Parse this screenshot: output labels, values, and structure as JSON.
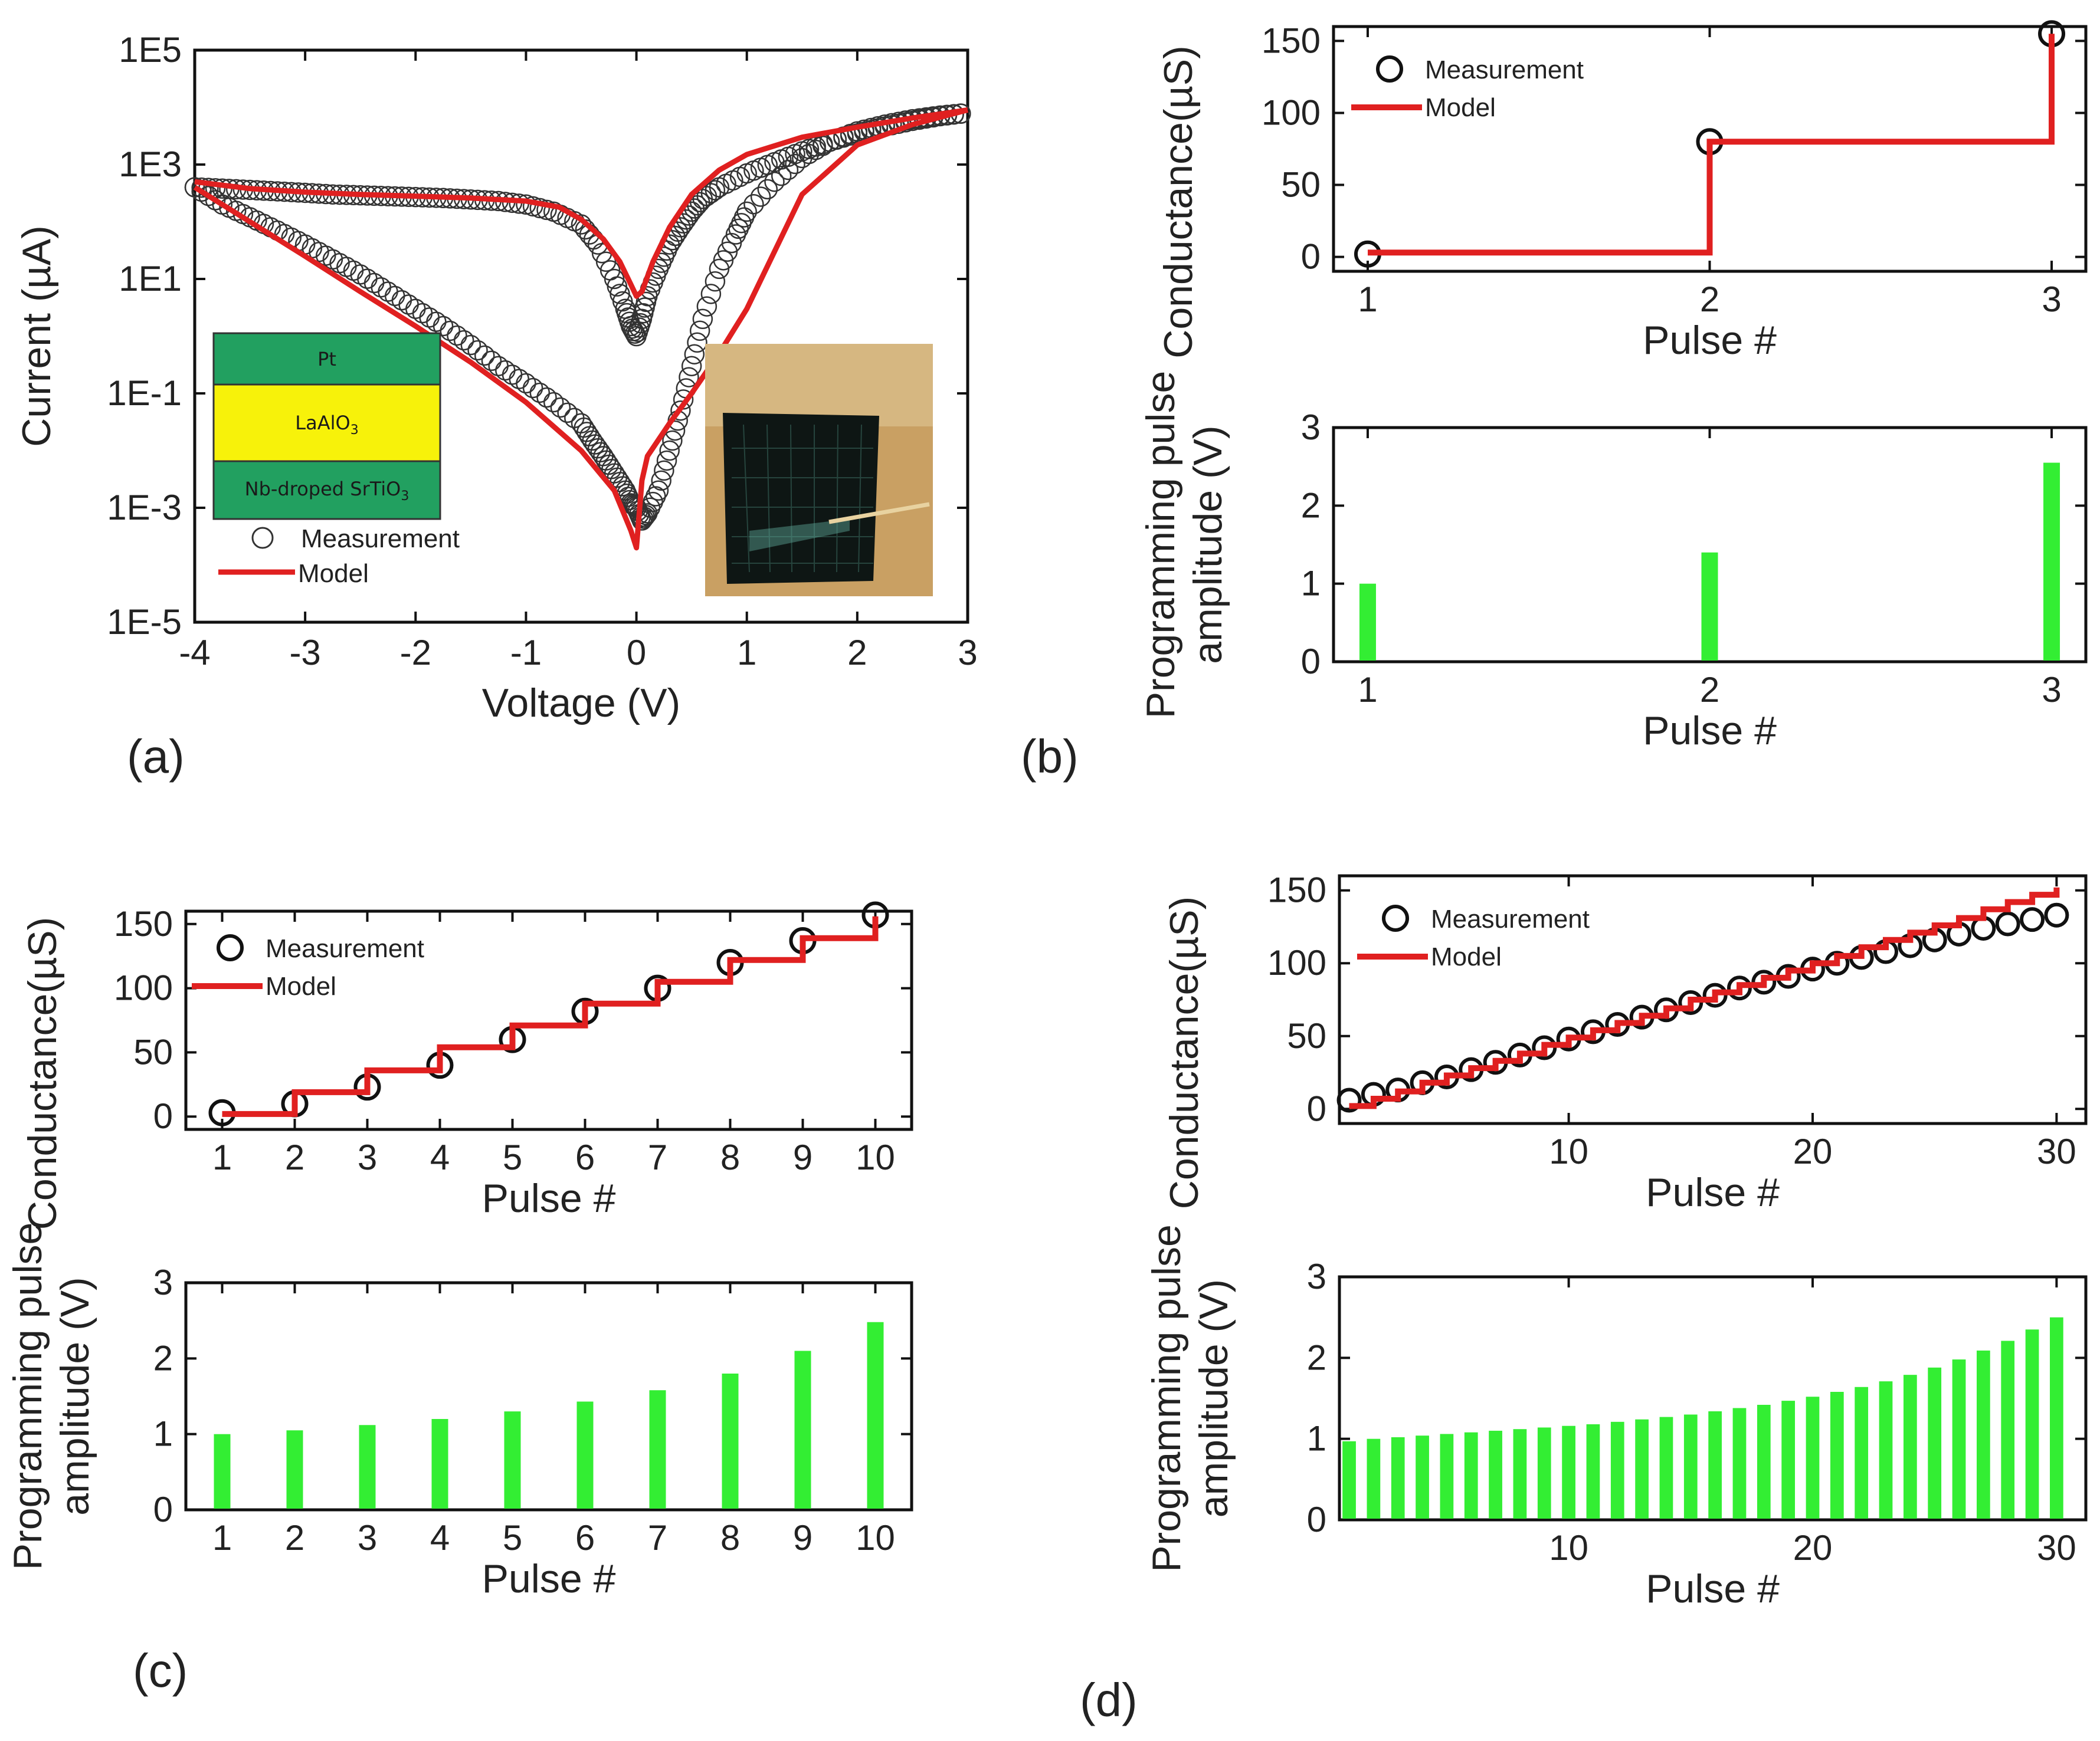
{
  "panels": {
    "a_label": "(a)",
    "b_label": "(b)",
    "c_label": "(c)",
    "d_label": "(d)"
  },
  "inset_a": {
    "layers": [
      "Pt",
      "LaAlO3",
      "Nb-droped SrTiO3"
    ],
    "colors": {
      "pt": "#22a060",
      "laalo3": "#f7f20a",
      "sto": "#22a060"
    }
  },
  "legend": {
    "measurement": "Measurement",
    "model": "Model"
  },
  "colors": {
    "model": "#e02020",
    "bar": "#33ee33",
    "marker": "#111111"
  },
  "chart_data": [
    {
      "id": "a",
      "type": "line",
      "xlabel": "Voltage (V)",
      "ylabel": "Current (µA)",
      "yscale": "log",
      "xlim": [
        -4,
        3
      ],
      "ylim": [
        1e-05,
        100000.0
      ],
      "xticks": [
        -4,
        -3,
        -2,
        -1,
        0,
        1,
        2,
        3
      ],
      "yticks": [
        {
          "v": 100000.0,
          "t": "1E5"
        },
        {
          "v": 1000.0,
          "t": "1E3"
        },
        {
          "v": 10.0,
          "t": "1E1"
        },
        {
          "v": 0.1,
          "t": "1E-1"
        },
        {
          "v": 0.001,
          "t": "1E-3"
        },
        {
          "v": 1e-05,
          "t": "1E-5"
        }
      ],
      "series": [
        {
          "name": "Measurement",
          "style": "markers",
          "x": [
            -4,
            -3.75,
            -3.5,
            -3.25,
            -3,
            -2.75,
            -2.5,
            -2.25,
            -2,
            -1.75,
            -1.5,
            -1.25,
            -1,
            -0.75,
            -0.5,
            -0.35,
            -0.2,
            -0.1,
            -0.05,
            0,
            0.05,
            0.1,
            0.2,
            0.3,
            0.4,
            0.5,
            0.6,
            0.75,
            1,
            1.25,
            1.5,
            1.75,
            2,
            2.25,
            2.5,
            2.75,
            3
          ],
          "y": [
            400,
            380,
            360,
            340,
            320,
            300,
            290,
            280,
            270,
            260,
            245,
            230,
            200,
            150,
            90,
            40,
            10,
            3,
            1.5,
            1,
            2,
            5,
            15,
            40,
            80,
            150,
            250,
            400,
            700,
            1100,
            1700,
            2500,
            3500,
            4600,
            5800,
            7000,
            8000
          ]
        },
        {
          "name": "Measurement",
          "style": "markers",
          "x": [
            -4,
            -3.75,
            -3.5,
            -3.25,
            -3,
            -2.75,
            -2.5,
            -2.25,
            -2,
            -1.75,
            -1.5,
            -1.25,
            -1,
            -0.75,
            -0.5,
            -0.4,
            -0.3,
            -0.2,
            -0.1,
            -0.05,
            0,
            0.05,
            0.1,
            0.2,
            0.3,
            0.4,
            0.5,
            0.6,
            0.75,
            0.9,
            1,
            1.25,
            1.5,
            1.75,
            2,
            2.25,
            2.5,
            2.75,
            3
          ],
          "y": [
            400,
            200,
            120,
            70,
            40,
            22,
            12,
            6,
            3,
            1.5,
            0.7,
            0.3,
            0.15,
            0.07,
            0.03,
            0.015,
            0.008,
            0.004,
            0.002,
            0.0012,
            0.001,
            0.0006,
            0.0008,
            0.002,
            0.01,
            0.05,
            0.3,
            2,
            15,
            60,
            150,
            500,
            1300,
            2500,
            3800,
            5000,
            6200,
            7200,
            8000
          ]
        },
        {
          "name": "Model",
          "style": "line",
          "x": [
            -4,
            -3.5,
            -3,
            -2.5,
            -2,
            -1.5,
            -1,
            -0.7,
            -0.5,
            -0.3,
            -0.15,
            -0.05,
            0,
            0.05,
            0.15,
            0.3,
            0.5,
            0.75,
            1,
            1.5,
            2,
            2.5,
            3
          ],
          "y": [
            500,
            380,
            330,
            300,
            280,
            260,
            230,
            180,
            110,
            50,
            20,
            8,
            5,
            6,
            20,
            80,
            300,
            800,
            1500,
            3000,
            4500,
            6500,
            9000
          ]
        },
        {
          "name": "Model",
          "style": "line",
          "x": [
            -4,
            -3.5,
            -3,
            -2.5,
            -2,
            -1.5,
            -1,
            -0.5,
            -0.2,
            -0.05,
            0,
            0.05,
            0.1,
            0.3,
            0.5,
            0.75,
            1,
            1.25,
            1.5,
            2,
            2.5,
            3
          ],
          "y": [
            400,
            100,
            25,
            6,
            1.5,
            0.35,
            0.07,
            0.01,
            0.002,
            0.0004,
            0.0002,
            0.003,
            0.008,
            0.03,
            0.1,
            0.5,
            3,
            30,
            300,
            2200,
            5000,
            9000
          ]
        }
      ]
    },
    {
      "id": "b_top",
      "type": "line",
      "xlabel": "Pulse #",
      "ylabel": "Conductance(µS)",
      "xlim": [
        0.9,
        3.1
      ],
      "ylim": [
        -10,
        160
      ],
      "xticks": [
        1,
        2,
        3
      ],
      "yticks": [
        0,
        50,
        100,
        150
      ],
      "measurement": {
        "x": [
          1,
          2,
          3
        ],
        "y": [
          2,
          80,
          155
        ]
      },
      "model_steps": {
        "x": [
          1,
          2,
          3
        ],
        "y": [
          3,
          80,
          155
        ]
      }
    },
    {
      "id": "b_bottom",
      "type": "bar",
      "xlabel": "Pulse #",
      "ylabel": "Programming pulse amplitude (V)",
      "xlim": [
        0.9,
        3.1
      ],
      "ylim": [
        0,
        3
      ],
      "xticks": [
        1,
        2,
        3
      ],
      "yticks": [
        0,
        1,
        2,
        3
      ],
      "categories": [
        1,
        2,
        3
      ],
      "values": [
        1,
        1.4,
        2.55
      ]
    },
    {
      "id": "c_top",
      "type": "line",
      "xlabel": "Pulse #",
      "ylabel": "Conductance(µS)",
      "xlim": [
        0.5,
        10.5
      ],
      "ylim": [
        -10,
        160
      ],
      "xticks": [
        1,
        2,
        3,
        4,
        5,
        6,
        7,
        8,
        9,
        10
      ],
      "yticks": [
        0,
        50,
        100,
        150
      ],
      "measurement": {
        "x": [
          1,
          2,
          3,
          4,
          5,
          6,
          7,
          8,
          9,
          10
        ],
        "y": [
          3,
          10,
          23,
          40,
          60,
          82,
          100,
          120,
          137,
          157
        ]
      },
      "model_steps": {
        "x": [
          1,
          2,
          3,
          4,
          5,
          6,
          7,
          8,
          9,
          10
        ],
        "y": [
          2,
          19,
          36,
          54,
          71,
          88,
          105,
          122,
          139,
          156
        ]
      }
    },
    {
      "id": "c_bottom",
      "type": "bar",
      "xlabel": "Pulse #",
      "ylabel": "Programming pulse amplitude (V)",
      "xlim": [
        0.5,
        10.5
      ],
      "ylim": [
        0,
        3
      ],
      "xticks": [
        1,
        2,
        3,
        4,
        5,
        6,
        7,
        8,
        9,
        10
      ],
      "yticks": [
        0,
        1,
        2,
        3
      ],
      "categories": [
        1,
        2,
        3,
        4,
        5,
        6,
        7,
        8,
        9,
        10
      ],
      "values": [
        1,
        1.05,
        1.12,
        1.2,
        1.3,
        1.43,
        1.58,
        1.8,
        2.1,
        2.48
      ]
    },
    {
      "id": "d_top",
      "type": "line",
      "xlabel": "Pulse #",
      "ylabel": "Conductance(µS)",
      "xlim": [
        0.6,
        31.2
      ],
      "ylim": [
        -10,
        160
      ],
      "xticks": [
        10,
        20,
        30
      ],
      "yticks": [
        0,
        50,
        100,
        150
      ],
      "measurement": {
        "x": [
          1,
          2,
          3,
          4,
          5,
          6,
          7,
          8,
          9,
          10,
          11,
          12,
          13,
          14,
          15,
          16,
          17,
          18,
          19,
          20,
          21,
          22,
          23,
          24,
          25,
          26,
          27,
          28,
          29,
          30
        ],
        "y": [
          6,
          10,
          13,
          18,
          22,
          27,
          32,
          37,
          42,
          48,
          53,
          58,
          63,
          68,
          73,
          78,
          83,
          87,
          91,
          96,
          100,
          104,
          108,
          112,
          116,
          120,
          124,
          127,
          130,
          133
        ]
      },
      "model_steps": {
        "x": [
          1,
          2,
          3,
          4,
          5,
          6,
          7,
          8,
          9,
          10,
          11,
          12,
          13,
          14,
          15,
          16,
          17,
          18,
          19,
          20,
          21,
          22,
          23,
          24,
          25,
          26,
          27,
          28,
          29,
          30
        ],
        "y": [
          2,
          7,
          12,
          18,
          23,
          28,
          33,
          38,
          44,
          49,
          54,
          59,
          64,
          69,
          75,
          80,
          85,
          90,
          95,
          100,
          105,
          111,
          116,
          121,
          126,
          131,
          137,
          142,
          147,
          152
        ]
      }
    },
    {
      "id": "d_bottom",
      "type": "bar",
      "xlabel": "Pulse #",
      "ylabel": "Programming pulse amplitude (V)",
      "xlim": [
        0.6,
        31.2
      ],
      "ylim": [
        0,
        3
      ],
      "xticks": [
        10,
        20,
        30
      ],
      "yticks": [
        0,
        1,
        2,
        3
      ],
      "categories": [
        1,
        2,
        3,
        4,
        5,
        6,
        7,
        8,
        9,
        10,
        11,
        12,
        13,
        14,
        15,
        16,
        17,
        18,
        19,
        20,
        21,
        22,
        23,
        24,
        25,
        26,
        27,
        28,
        29,
        30
      ],
      "values": [
        0.97,
        1.0,
        1.02,
        1.04,
        1.06,
        1.08,
        1.1,
        1.12,
        1.14,
        1.16,
        1.18,
        1.21,
        1.24,
        1.27,
        1.3,
        1.34,
        1.38,
        1.42,
        1.47,
        1.52,
        1.58,
        1.64,
        1.71,
        1.79,
        1.88,
        1.98,
        2.09,
        2.21,
        2.35,
        2.5
      ]
    }
  ]
}
